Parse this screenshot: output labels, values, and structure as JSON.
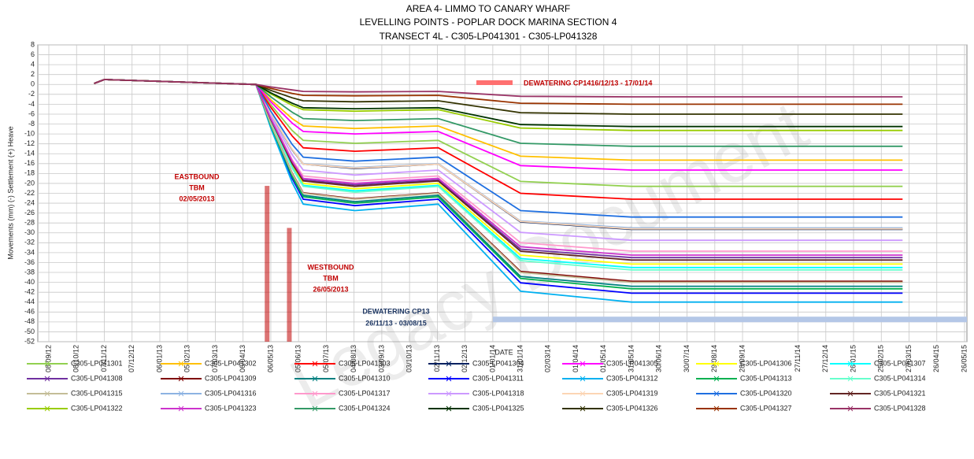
{
  "chart_data": {
    "type": "line",
    "title": [
      "AREA 4- LIMMO TO CANARY WHARF",
      "LEVELLING POINTS - POPLAR DOCK MARINA SECTION 4",
      "TRANSECT 4L  -  C305-LP041301 - C305-LP041328"
    ],
    "x_label": "DATE",
    "y_label": "Movements (mm) (-) Settlement (+) Heave",
    "watermark": "Legacy Document",
    "x": [
      "27/10/12",
      "07/11/12",
      "20/04/13",
      "06/05/13",
      "29/05/13",
      "10/06/13",
      "05/08/13",
      "03/11/13",
      "31/01/14",
      "31/05/14",
      "20/03/15"
    ],
    "xlim": [
      "08/09/12",
      "26/05/15"
    ],
    "xticks": [
      "08/09/12",
      "08/10/12",
      "07/11/12",
      "07/12/12",
      "06/01/13",
      "05/02/13",
      "07/03/13",
      "06/04/13",
      "06/05/13",
      "05/06/13",
      "05/07/13",
      "04/08/13",
      "03/09/13",
      "03/10/13",
      "02/11/13",
      "02/12/13",
      "01/01/14",
      "31/01/14",
      "02/03/14",
      "01/04/14",
      "01/05/14",
      "31/05/14",
      "30/06/14",
      "30/07/14",
      "29/08/14",
      "28/09/14",
      "27/11/14",
      "27/12/14",
      "26/01/15",
      "25/02/15",
      "27/03/15",
      "26/04/15",
      "26/05/15"
    ],
    "ylim": [
      -52,
      8
    ],
    "yticks": [
      -52,
      -50,
      -48,
      -46,
      -44,
      -42,
      -40,
      -38,
      -36,
      -34,
      -32,
      -30,
      -28,
      -26,
      -24,
      -22,
      -20,
      -18,
      -16,
      -14,
      -12,
      -10,
      -8,
      -6,
      -4,
      -2,
      0,
      2,
      4,
      6,
      8
    ],
    "grid": true,
    "legend": "bottom",
    "series": [
      {
        "name": "C305-LP041301",
        "color": "#92d050",
        "values": [
          0.2,
          1,
          0,
          -4.1,
          -9.3,
          -11.3,
          -11.9,
          -11.3,
          -19.6,
          -20.6,
          -20.6
        ]
      },
      {
        "name": "C305-LP041302",
        "color": "#ffc000",
        "values": [
          0.2,
          1,
          0,
          -3.1,
          -6.9,
          -8.4,
          -8.9,
          -8.4,
          -14.5,
          -15.3,
          -15.3
        ]
      },
      {
        "name": "C305-LP041303",
        "color": "#ff0000",
        "values": [
          0.2,
          1,
          0,
          -4.6,
          -10.4,
          -12.8,
          -13.5,
          -12.8,
          -22.0,
          -23.2,
          -23.2
        ]
      },
      {
        "name": "C305-LP041304",
        "color": "#002060",
        "values": [
          0.2,
          1,
          0,
          -5.9,
          -13.2,
          -16.1,
          -17.0,
          -16.1,
          -27.8,
          -29.3,
          -29.3
        ]
      },
      {
        "name": "C305-LP041305",
        "color": "#ff00ff",
        "values": [
          0.2,
          1,
          0,
          -3.5,
          -7.8,
          -9.5,
          -10.0,
          -9.5,
          -16.4,
          -17.3,
          -17.3
        ]
      },
      {
        "name": "C305-LP041306",
        "color": "#ffff00",
        "values": [
          0.2,
          1,
          0,
          -7.3,
          -16.3,
          -20.0,
          -21.1,
          -20.0,
          -34.5,
          -36.3,
          -36.3
        ]
      },
      {
        "name": "C305-LP041307",
        "color": "#00ffff",
        "values": [
          0.2,
          1,
          0,
          -7.4,
          -16.7,
          -20.4,
          -21.5,
          -20.4,
          -35.2,
          -37,
          -37
        ]
      },
      {
        "name": "C305-LP041308",
        "color": "#7030a0",
        "values": [
          0.2,
          1,
          0,
          -7,
          -15.8,
          -19.3,
          -20.3,
          -19.3,
          -33.3,
          -35,
          -35
        ]
      },
      {
        "name": "C305-LP041309",
        "color": "#7f0000",
        "values": [
          0.2,
          1,
          0,
          -8.0,
          -17.9,
          -21.9,
          -23.1,
          -21.9,
          -37.8,
          -39.8,
          -39.8
        ]
      },
      {
        "name": "C305-LP041310",
        "color": "#008080",
        "values": [
          0.2,
          1,
          0,
          -8.2,
          -18.4,
          -22.4,
          -23.7,
          -22.4,
          -38.8,
          -40.8,
          -40.8
        ]
      },
      {
        "name": "C305-LP041311",
        "color": "#0000ff",
        "values": [
          0.2,
          1,
          0,
          -8.4,
          -19.0,
          -23.2,
          -24.5,
          -23.2,
          -40.1,
          -42.2,
          -42.2
        ]
      },
      {
        "name": "C305-LP041312",
        "color": "#00b0f0",
        "values": [
          0.2,
          1,
          0,
          -8.8,
          -19.8,
          -24.2,
          -25.5,
          -24.2,
          -41.8,
          -44,
          -44
        ]
      },
      {
        "name": "C305-LP041313",
        "color": "#00b050",
        "values": [
          0.2,
          1,
          0,
          -8.3,
          -18.6,
          -22.7,
          -24.0,
          -22.7,
          -39.2,
          -41.3,
          -41.3
        ]
      },
      {
        "name": "C305-LP041314",
        "color": "#66ffcc",
        "values": [
          0.2,
          1,
          0,
          -7.5,
          -16.9,
          -20.6,
          -21.8,
          -20.6,
          -35.6,
          -37.5,
          -37.5
        ]
      },
      {
        "name": "C305-LP041315",
        "color": "#c4bd97",
        "values": [
          0.2,
          1,
          0,
          -8,
          -18,
          -22,
          -23.2,
          -22,
          -38,
          -40,
          -40
        ]
      },
      {
        "name": "C305-LP041316",
        "color": "#8db3e2",
        "values": [
          0.2,
          1,
          0,
          -5.8,
          -13.1,
          -16.0,
          -16.8,
          -16.0,
          -27.6,
          -29,
          -29
        ]
      },
      {
        "name": "C305-LP041317",
        "color": "#ff99cc",
        "values": [
          0.2,
          1,
          0,
          -6.7,
          -15.2,
          -18.5,
          -19.5,
          -18.5,
          -32.0,
          -33.7,
          -33.7
        ]
      },
      {
        "name": "C305-LP041318",
        "color": "#cc99ff",
        "values": [
          0.2,
          1,
          0,
          -6.3,
          -14.2,
          -17.3,
          -18.3,
          -17.3,
          -29.9,
          -31.5,
          -31.5
        ]
      },
      {
        "name": "C305-LP041319",
        "color": "#fcd5b4",
        "values": [
          0.2,
          1,
          0,
          -5.8,
          -13.1,
          -16.1,
          -16.9,
          -16.1,
          -27.7,
          -29.2,
          -29.2
        ]
      },
      {
        "name": "C305-LP041320",
        "color": "#1f6fe0",
        "values": [
          0.2,
          1,
          0,
          -5.4,
          -12.1,
          -14.7,
          -15.5,
          -14.7,
          -25.5,
          -26.8,
          -26.8
        ]
      },
      {
        "name": "C305-LP041321",
        "color": "#632523",
        "values": [
          0.2,
          1,
          0,
          -7.1,
          -16.0,
          -19.5,
          -20.6,
          -19.5,
          -33.7,
          -35.5,
          -35.5
        ]
      },
      {
        "name": "C305-LP041322",
        "color": "#99cc00",
        "values": [
          0.2,
          1,
          0,
          -1.9,
          -4.2,
          -5.1,
          -5.4,
          -5.1,
          -8.8,
          -9.3,
          -9.3
        ]
      },
      {
        "name": "C305-LP041323",
        "color": "#cc33cc",
        "values": [
          0.2,
          1,
          0,
          -6.9,
          -15.5,
          -19.0,
          -20.0,
          -19.0,
          -32.8,
          -34.5,
          -34.5
        ]
      },
      {
        "name": "C305-LP041324",
        "color": "#339966",
        "values": [
          0.2,
          1,
          0,
          -2.5,
          -5.6,
          -6.9,
          -7.3,
          -6.9,
          -11.9,
          -12.5,
          -12.5
        ]
      },
      {
        "name": "C305-LP041325",
        "color": "#003300",
        "values": [
          0.2,
          1,
          0,
          -1.7,
          -3.8,
          -4.7,
          -4.9,
          -4.7,
          -8.1,
          -8.5,
          -8.5
        ]
      },
      {
        "name": "C305-LP041326",
        "color": "#333300",
        "values": [
          0.2,
          1,
          0,
          -1.2,
          -2.7,
          -3.3,
          -3.5,
          -3.3,
          -5.7,
          -6,
          -6
        ]
      },
      {
        "name": "C305-LP041327",
        "color": "#993300",
        "values": [
          0.2,
          1,
          0,
          -0.8,
          -1.8,
          -2.2,
          -2.3,
          -2.2,
          -3.8,
          -4,
          -4
        ]
      },
      {
        "name": "C305-LP041328",
        "color": "#993366",
        "values": [
          0.2,
          1,
          0,
          -0.5,
          -1.1,
          -1.4,
          -1.5,
          -1.4,
          -2.4,
          -2.5,
          -2.5
        ]
      }
    ],
    "events": [
      {
        "lines": [
          "EASTBOUND",
          "TBM",
          "02/05/2013"
        ],
        "x": "02/05/13",
        "top": -20.5,
        "color": "#c00000"
      },
      {
        "lines": [
          "WESTBOUND",
          "TBM",
          "26/05/2013"
        ],
        "x": "26/05/13",
        "top": -29,
        "color": "#c00000"
      }
    ],
    "band": {
      "lines": [
        "DEWATERING CP13",
        "26/11/13 - 03/08/15"
      ],
      "start": "01/01/14",
      "end": "26/05/15",
      "value": -47.5,
      "color": "#b4c7e7",
      "text_color": "#1f3864"
    },
    "key_note": {
      "text": "DEWATERING CP1416/12/13 - 17/01/14",
      "color": "#ff7070",
      "text_color": "#c00000"
    }
  }
}
